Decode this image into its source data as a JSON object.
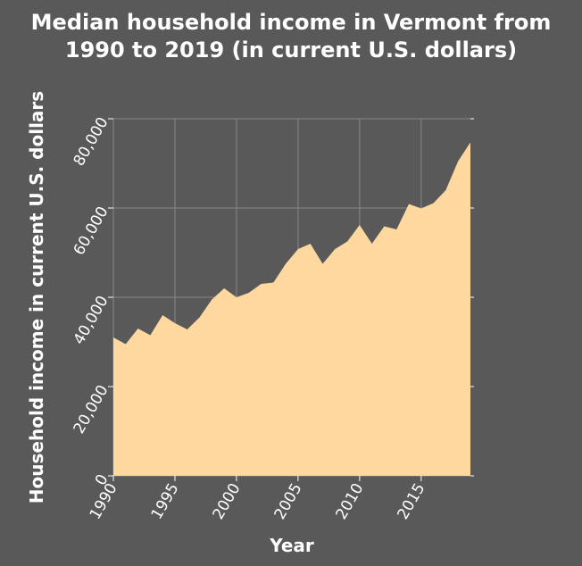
{
  "chart_data": {
    "type": "area",
    "title_lines": [
      "Median household income in Vermont from",
      "1990 to 2019 (in current U.S. dollars)"
    ],
    "xlabel": "Year",
    "ylabel": "Household income in current U.S. dollars",
    "xlim": [
      1990,
      2019
    ],
    "ylim": [
      0,
      80000
    ],
    "xticks": [
      1990,
      1995,
      2000,
      2005,
      2010,
      2015
    ],
    "xtick_labels": [
      "1990",
      "1995",
      "2000",
      "2005",
      "2010",
      "2015"
    ],
    "yticks": [
      0,
      20000,
      40000,
      60000,
      80000
    ],
    "ytick_labels": [
      "0",
      "20,000",
      "40,000",
      "60,000",
      "80,000"
    ],
    "grid": true,
    "series": [
      {
        "x": [
          1990,
          1991,
          1992,
          1993,
          1994,
          1995,
          1996,
          1997,
          1998,
          1999,
          2000,
          2001,
          2002,
          2003,
          2004,
          2005,
          2006,
          2007,
          2008,
          2009,
          2010,
          2011,
          2012,
          2013,
          2014,
          2015,
          2016,
          2017,
          2018,
          2019
        ],
        "y": [
          31000,
          29500,
          33000,
          31500,
          36000,
          34200,
          32800,
          35500,
          39500,
          42000,
          40000,
          41000,
          43000,
          43300,
          47500,
          50800,
          52000,
          47500,
          50800,
          52500,
          56200,
          52000,
          55900,
          55200,
          60900,
          59900,
          61100,
          64000,
          70500,
          74700
        ]
      }
    ],
    "colors": {
      "area": "#ffd8a0",
      "grid": "#888888",
      "background": "#595959",
      "text": "#ffffff"
    }
  }
}
